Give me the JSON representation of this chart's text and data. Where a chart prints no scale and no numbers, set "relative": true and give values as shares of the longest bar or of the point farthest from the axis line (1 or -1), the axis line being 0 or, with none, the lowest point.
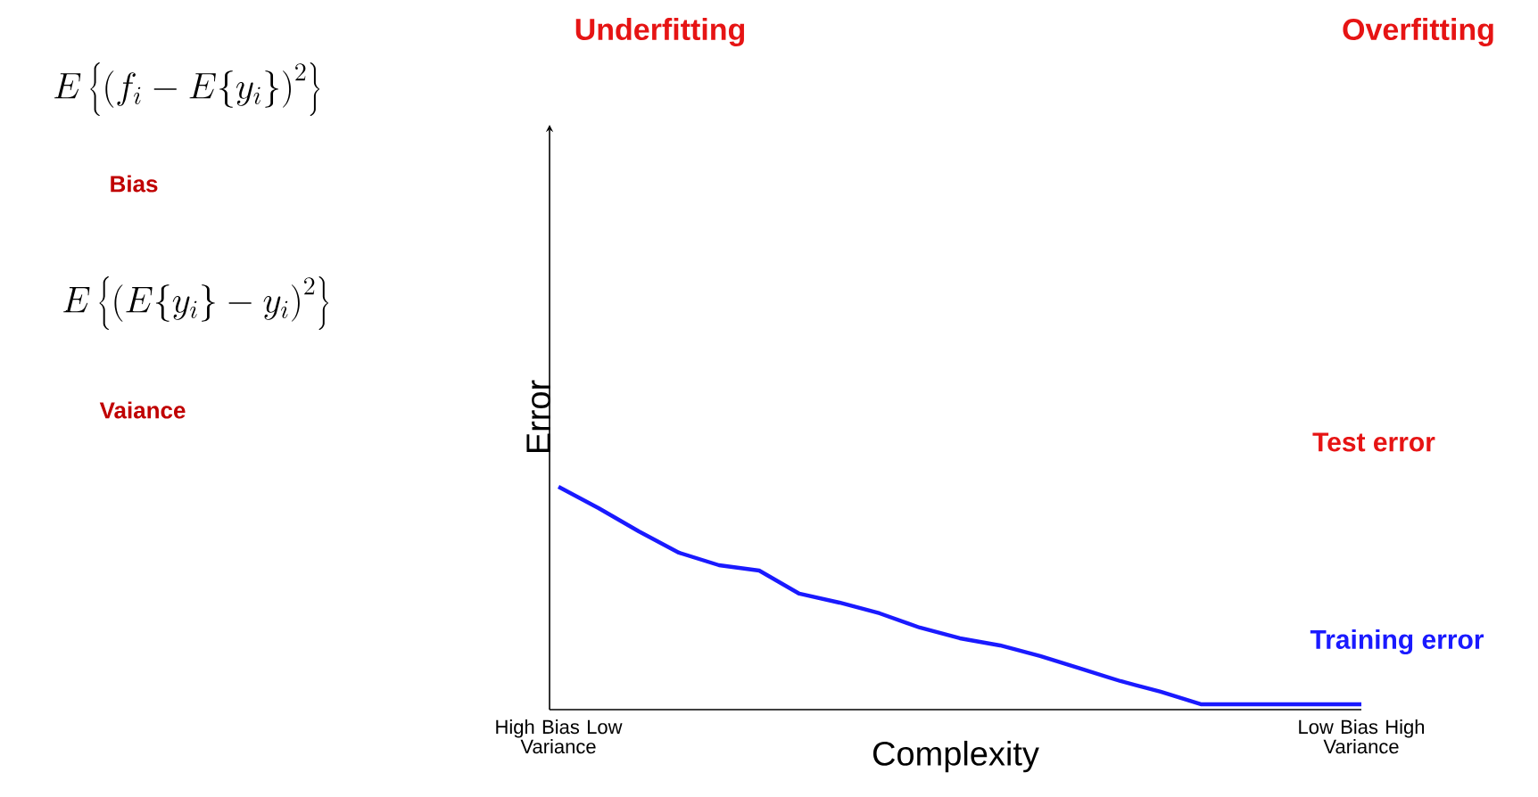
{
  "chart_data": {
    "type": "line",
    "relative": true,
    "xlabel": "Complexity",
    "ylabel": "Error",
    "categories": [
      "High Bias Low Variance",
      null,
      null,
      null,
      null,
      null,
      null,
      null,
      null,
      null,
      null,
      null,
      null,
      null,
      null,
      null,
      null,
      null,
      null,
      null,
      "Low Bias High Variance"
    ],
    "series": [
      {
        "name": "Training error",
        "color": "#1a1aff",
        "values": [
          1,
          0.904,
          0.8,
          0.704,
          0.648,
          0.624,
          0.52,
          0.48,
          0.432,
          0.368,
          0.32,
          0.288,
          0.24,
          0.184,
          0.128,
          0.08,
          0.024,
          0.024,
          0.024,
          0.024,
          0.024
        ]
      }
    ],
    "annotations": [
      "E\\left\\{\\left(f_i - E\\{y_i\\}\\right)^2\\right\\}",
      "Bias",
      "E\\left\\{\\left(E\\{y_i\\} - y_i\\right)^2\\right\\}",
      "Vaiance",
      "Underfitting",
      "Overfitting",
      "Test error"
    ]
  }
}
